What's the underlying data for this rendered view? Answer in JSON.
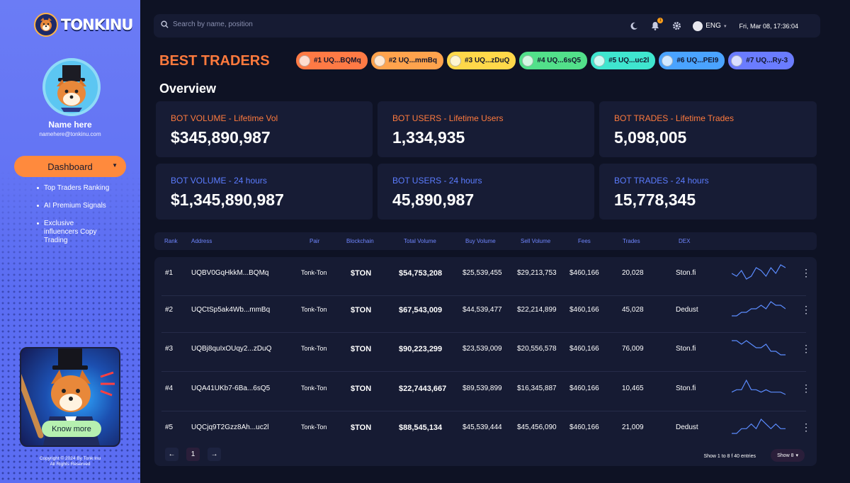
{
  "brand": {
    "name": "TONKINU"
  },
  "user": {
    "name": "Name here",
    "email": "namehere@tonkinu.com"
  },
  "nav": {
    "dashboard_label": "Dashboard",
    "items": [
      {
        "label": "Top Traders Ranking"
      },
      {
        "label": "AI Premium Signals"
      },
      {
        "label": "Exclusive influencers Copy Trading"
      }
    ]
  },
  "promo": {
    "button_label": "Know more"
  },
  "copyright": {
    "line1": "Copyright © 2024 By Tonk Inu",
    "line2": "All Rights Reserved"
  },
  "topbar": {
    "search_placeholder": "Search by name, position",
    "notifications": "1",
    "language": "ENG",
    "datetime": "Fri, Mar 08, 17:36:04"
  },
  "header": {
    "title": "BEST TRADERS",
    "overview": "Overview"
  },
  "top_traders": [
    {
      "label": "#1  UQ...BQMq",
      "color": "#ff7a45"
    },
    {
      "label": "#2  UQ...mmBq",
      "color": "#ffa34d"
    },
    {
      "label": "#3  UQ...zDuQ",
      "color": "#ffd84a"
    },
    {
      "label": "#4  UQ...6sQ5",
      "color": "#52e08a"
    },
    {
      "label": "#5  UQ...uc2l",
      "color": "#3fe6cf"
    },
    {
      "label": "#6 UQ...PEI9",
      "color": "#4aa3ff"
    },
    {
      "label": "#7  UQ...Ry-3",
      "color": "#6a7cff"
    }
  ],
  "stats": [
    {
      "label": "BOT VOLUME - Lifetime Vol",
      "value": "$345,890,987",
      "accent": "orange"
    },
    {
      "label": "BOT USERS - Lifetime Users",
      "value": "1,334,935",
      "accent": "orange"
    },
    {
      "label": "BOT TRADES - Lifetime Trades",
      "value": "5,098,005",
      "accent": "orange"
    },
    {
      "label": "BOT VOLUME - 24 hours",
      "value": "$1,345,890,987",
      "accent": "blue"
    },
    {
      "label": "BOT USERS - 24 hours",
      "value": "45,890,987",
      "accent": "blue"
    },
    {
      "label": "BOT TRADES - 24 hours",
      "value": "15,778,345",
      "accent": "blue"
    }
  ],
  "table": {
    "columns": {
      "rank": "Rank",
      "address": "Address",
      "pair": "Pair",
      "blockchain": "Blockchain",
      "total_volume": "Total Volume",
      "buy_volume": "Buy Volume",
      "sell_volume": "Sell Volume",
      "fees": "Fees",
      "trades": "Trades",
      "dex": "DEX"
    },
    "rows": [
      {
        "rank": "#1",
        "address": "UQBV0GqHkkM...BQMq",
        "pair": "Tonk-Ton",
        "blockchain": "$TON",
        "total_volume": "$54,753,208",
        "buy_volume": "$25,539,455",
        "sell_volume": "$29,213,753",
        "fees": "$460,166",
        "trades": "20,028",
        "dex": "Ston.fi",
        "trend": [
          5,
          6,
          4,
          7,
          6,
          3,
          4,
          6,
          3,
          5,
          2,
          3
        ]
      },
      {
        "rank": "#2",
        "address": "UQCtSp5ak4Wb...mmBq",
        "pair": "Tonk-Ton",
        "blockchain": "$TON",
        "total_volume": "$67,543,009",
        "buy_volume": "$44,539,477",
        "sell_volume": "$22,214,899",
        "fees": "$460,166",
        "trades": "45,028",
        "dex": "Dedust",
        "trend": [
          7,
          7,
          6,
          6,
          5,
          5,
          4,
          5,
          3,
          4,
          4,
          5
        ]
      },
      {
        "rank": "#3",
        "address": "UQBj8quIxOUqy2...zDuQ",
        "pair": "Tonk-Ton",
        "blockchain": "$TON",
        "total_volume": "$90,223,299",
        "buy_volume": "$23,539,009",
        "sell_volume": "$20,556,578",
        "fees": "$460,166",
        "trades": "76,009",
        "dex": "Ston.fi",
        "trend": [
          3,
          3,
          4,
          3,
          4,
          5,
          5,
          4,
          6,
          6,
          7,
          7
        ]
      },
      {
        "rank": "#4",
        "address": "UQA41UKb7-6Ba...6sQ5",
        "pair": "Tonk-Ton",
        "blockchain": "$TON",
        "total_volume": "$22,7443,667",
        "buy_volume": "$89,539,899",
        "sell_volume": "$16,345,887",
        "fees": "$460,166",
        "trades": "10,465",
        "dex": "Ston.fi",
        "trend": [
          7,
          6,
          6,
          2,
          6,
          6,
          7,
          6,
          7,
          7,
          7,
          8
        ]
      },
      {
        "rank": "#5",
        "address": "UQCjq9T2Gzz8Ah...uc2l",
        "pair": "Tonk-Ton",
        "blockchain": "$TON",
        "total_volume": "$88,545,134",
        "buy_volume": "$45,539,444",
        "sell_volume": "$45,456,090",
        "fees": "$460,166",
        "trades": "21,009",
        "dex": "Dedust",
        "trend": [
          6,
          6,
          5,
          5,
          4,
          5,
          3,
          4,
          5,
          4,
          5,
          5
        ]
      }
    ]
  },
  "pagination": {
    "prev": "←",
    "page": "1",
    "next": "→",
    "entries": "Show 1 to 8 f 40 entries",
    "show": "Show 8"
  }
}
